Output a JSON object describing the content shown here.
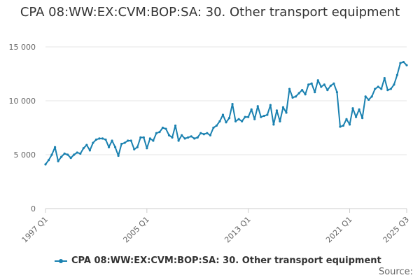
{
  "chart_data": {
    "type": "line",
    "title": "CPA 08:WW:EX:CVM:BOP:SA: 30. Other transport equipment",
    "xlabel": "",
    "ylabel": "",
    "ylim": [
      0,
      15000
    ],
    "yticks": [
      {
        "value": 0,
        "label": "0"
      },
      {
        "value": 5000,
        "label": "5 000"
      },
      {
        "value": 10000,
        "label": "10 000"
      },
      {
        "value": 15000,
        "label": "15 000"
      }
    ],
    "xticks": [
      {
        "index": 0,
        "label": "1997 Q1"
      },
      {
        "index": 32,
        "label": "2005 Q1"
      },
      {
        "index": 64,
        "label": "2013 Q1"
      },
      {
        "index": 96,
        "label": "2021 Q1"
      },
      {
        "index": 114,
        "label": "2025 Q3"
      }
    ],
    "grid": true,
    "legend_position": "bottom",
    "color": "#1a81b0",
    "series": [
      {
        "name": "CPA 08:WW:EX:CVM:BOP:SA: 30. Other transport equipment",
        "values": [
          4100,
          4500,
          5000,
          5700,
          4400,
          4800,
          5100,
          5000,
          4700,
          5000,
          5200,
          5100,
          5600,
          5900,
          5400,
          6100,
          6400,
          6500,
          6500,
          6400,
          5700,
          6300,
          5700,
          4900,
          6000,
          6100,
          6300,
          6300,
          5500,
          5700,
          6600,
          6600,
          5600,
          6500,
          6300,
          7000,
          7100,
          7500,
          7400,
          6800,
          6600,
          7700,
          6300,
          6800,
          6500,
          6600,
          6700,
          6500,
          6600,
          7000,
          6900,
          7000,
          6800,
          7500,
          7700,
          8100,
          8700,
          8000,
          8400,
          9700,
          8100,
          8300,
          8100,
          8500,
          8500,
          9200,
          8300,
          9500,
          8500,
          8600,
          8700,
          9600,
          7800,
          9100,
          8100,
          9400,
          8900,
          11100,
          10300,
          10400,
          10700,
          11000,
          10600,
          11500,
          11600,
          10800,
          11900,
          11300,
          11500,
          11000,
          11400,
          11600,
          10800,
          7600,
          7700,
          8300,
          7800,
          9300,
          8500,
          9200,
          8400,
          10400,
          10100,
          10400,
          11100,
          11300,
          11100,
          12100,
          11000,
          11100,
          11500,
          12400,
          13500,
          13600,
          13300
        ]
      }
    ]
  },
  "legend": {
    "label": "CPA 08:WW:EX:CVM:BOP:SA: 30. Other transport equipment"
  },
  "source": {
    "label": "Source:"
  }
}
